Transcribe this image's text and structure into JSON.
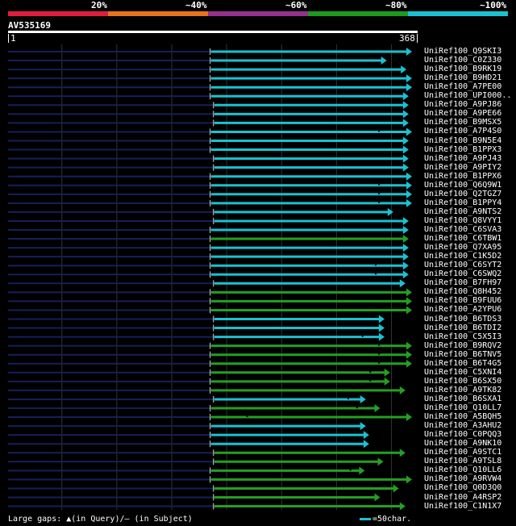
{
  "legend": [
    {
      "label": "20%",
      "color": "#e01e3c"
    },
    {
      "label": "~40%",
      "color": "#e8731c"
    },
    {
      "label": "~60%",
      "color": "#96308c"
    },
    {
      "label": "~80%",
      "color": "#1c9a1c"
    },
    {
      "label": "~100%",
      "color": "#19c2d2"
    }
  ],
  "query": {
    "name": "AV535169",
    "start": "1",
    "end": "368",
    "length": 368
  },
  "colors": {
    "cyan": "#19c2d2",
    "green": "#22a022",
    "navy": "#14205a",
    "grid": "#333333",
    "marker": "#ffffff"
  },
  "hits": [
    {
      "id": "UniRef100_Q9SKI3",
      "c": "cyan",
      "s": 185,
      "e": 368,
      "gap": null
    },
    {
      "id": "UniRef100_C0Z330",
      "c": "cyan",
      "s": 185,
      "e": 345,
      "gap": null
    },
    {
      "id": "UniRef100_B9RK19",
      "c": "cyan",
      "s": 185,
      "e": 363,
      "gap": null
    },
    {
      "id": "UniRef100_B9HD21",
      "c": "cyan",
      "s": 185,
      "e": 368,
      "gap": null
    },
    {
      "id": "UniRef100_A7PE00",
      "c": "cyan",
      "s": 185,
      "e": 368,
      "gap": null
    },
    {
      "id": "UniRef100_UPI000..",
      "c": "cyan",
      "s": 185,
      "e": 365,
      "gap": null
    },
    {
      "id": "UniRef100_A9PJ86",
      "c": "cyan",
      "s": 188,
      "e": 365,
      "gap": null
    },
    {
      "id": "UniRef100_A9PE66",
      "c": "cyan",
      "s": 188,
      "e": 365,
      "gap": null
    },
    {
      "id": "UniRef100_B9MSX5",
      "c": "cyan",
      "s": 188,
      "e": 365,
      "gap": null
    },
    {
      "id": "UniRef100_A7P4S0",
      "c": "cyan",
      "s": 185,
      "e": 368,
      "gap": 338
    },
    {
      "id": "UniRef100_B9N5E4",
      "c": "cyan",
      "s": 185,
      "e": 365,
      "gap": null
    },
    {
      "id": "UniRef100_B1PPX3",
      "c": "cyan",
      "s": 185,
      "e": 365,
      "gap": null
    },
    {
      "id": "UniRef100_A9PJ43",
      "c": "cyan",
      "s": 188,
      "e": 365,
      "gap": null
    },
    {
      "id": "UniRef100_A9PIY2",
      "c": "cyan",
      "s": 188,
      "e": 365,
      "gap": null
    },
    {
      "id": "UniRef100_B1PPX6",
      "c": "cyan",
      "s": 185,
      "e": 368,
      "gap": null
    },
    {
      "id": "UniRef100_Q6Q9W1",
      "c": "cyan",
      "s": 185,
      "e": 368,
      "gap": 338
    },
    {
      "id": "UniRef100_Q2TGZ7",
      "c": "cyan",
      "s": 185,
      "e": 368,
      "gap": 338
    },
    {
      "id": "UniRef100_B1PPY4",
      "c": "cyan",
      "s": 185,
      "e": 368,
      "gap": 338
    },
    {
      "id": "UniRef100_A9NTS2",
      "c": "cyan",
      "s": 188,
      "e": 351,
      "gap": null
    },
    {
      "id": "UniRef100_Q8VYY1",
      "c": "cyan",
      "s": 188,
      "e": 365,
      "gap": null
    },
    {
      "id": "UniRef100_C6SVA3",
      "c": "cyan",
      "s": 185,
      "e": 365,
      "gap": null
    },
    {
      "id": "UniRef100_C6TBW1",
      "c": "green",
      "s": 185,
      "e": 365,
      "gap": null
    },
    {
      "id": "UniRef100_Q7XA95",
      "c": "cyan",
      "s": 185,
      "e": 365,
      "gap": null
    },
    {
      "id": "UniRef100_C1K5D2",
      "c": "cyan",
      "s": 185,
      "e": 365,
      "gap": null
    },
    {
      "id": "UniRef100_C6SYT2",
      "c": "cyan",
      "s": 185,
      "e": 365,
      "gap": 335
    },
    {
      "id": "UniRef100_C6SWQ2",
      "c": "cyan",
      "s": 185,
      "e": 365,
      "gap": 335
    },
    {
      "id": "UniRef100_B7FH97",
      "c": "cyan",
      "s": 188,
      "e": 362,
      "gap": null
    },
    {
      "id": "UniRef100_Q8H452",
      "c": "green",
      "s": 185,
      "e": 368,
      "gap": null
    },
    {
      "id": "UniRef100_B9FUU6",
      "c": "green",
      "s": 185,
      "e": 368,
      "gap": null
    },
    {
      "id": "UniRef100_A2YPU6",
      "c": "green",
      "s": 185,
      "e": 368,
      "gap": null
    },
    {
      "id": "UniRef100_B6TDS3",
      "c": "cyan",
      "s": 188,
      "e": 343,
      "gap": null
    },
    {
      "id": "UniRef100_B6TDI2",
      "c": "cyan",
      "s": 188,
      "e": 343,
      "gap": null
    },
    {
      "id": "UniRef100_C5X5I3",
      "c": "cyan",
      "s": 188,
      "e": 343,
      "gap": 323
    },
    {
      "id": "UniRef100_B9RQV2",
      "c": "green",
      "s": 185,
      "e": 368,
      "gap": 338
    },
    {
      "id": "UniRef100_B6TNV5",
      "c": "green",
      "s": 185,
      "e": 368,
      "gap": 338
    },
    {
      "id": "UniRef100_B6T4G5",
      "c": "green",
      "s": 185,
      "e": 368,
      "gap": 338
    },
    {
      "id": "UniRef100_C5XNI4",
      "c": "green",
      "s": 185,
      "e": 348,
      "gap": 330
    },
    {
      "id": "UniRef100_B6SX50",
      "c": "green",
      "s": 185,
      "e": 348,
      "gap": 330
    },
    {
      "id": "UniRef100_A9TK82",
      "c": "green",
      "s": 185,
      "e": 362,
      "gap": null
    },
    {
      "id": "UniRef100_B6SXA1",
      "c": "cyan",
      "s": 188,
      "e": 326,
      "gap": 310
    },
    {
      "id": "UniRef100_Q10LL7",
      "c": "green",
      "s": 185,
      "e": 339,
      "gap": 318
    },
    {
      "id": "UniRef100_A5BQH5",
      "c": "green",
      "s": 185,
      "e": 368,
      "gap": 218
    },
    {
      "id": "UniRef100_A3AHU2",
      "c": "cyan",
      "s": 185,
      "e": 326,
      "gap": null
    },
    {
      "id": "UniRef100_C0PQQ3",
      "c": "cyan",
      "s": 185,
      "e": 329,
      "gap": null
    },
    {
      "id": "UniRef100_A9NK10",
      "c": "cyan",
      "s": 185,
      "e": 329,
      "gap": null
    },
    {
      "id": "UniRef100_A9STC1",
      "c": "green",
      "s": 188,
      "e": 362,
      "gap": null
    },
    {
      "id": "UniRef100_A9TSL8",
      "c": "green",
      "s": 188,
      "e": 342,
      "gap": null
    },
    {
      "id": "UniRef100_Q10LL6",
      "c": "green",
      "s": 185,
      "e": 325,
      "gap": 312
    },
    {
      "id": "UniRef100_A9RVW4",
      "c": "green",
      "s": 185,
      "e": 368,
      "gap": null
    },
    {
      "id": "UniRef100_Q0D3Q0",
      "c": "green",
      "s": 188,
      "e": 356,
      "gap": null
    },
    {
      "id": "UniRef100_A4RSP2",
      "c": "green",
      "s": 188,
      "e": 339,
      "gap": null
    },
    {
      "id": "UniRef100_C1N1X7",
      "c": "green",
      "s": 188,
      "e": 362,
      "gap": null
    }
  ],
  "footer": {
    "left": "Large gaps: ▲(in Query)/— (in Subject)",
    "right": "=50char."
  }
}
